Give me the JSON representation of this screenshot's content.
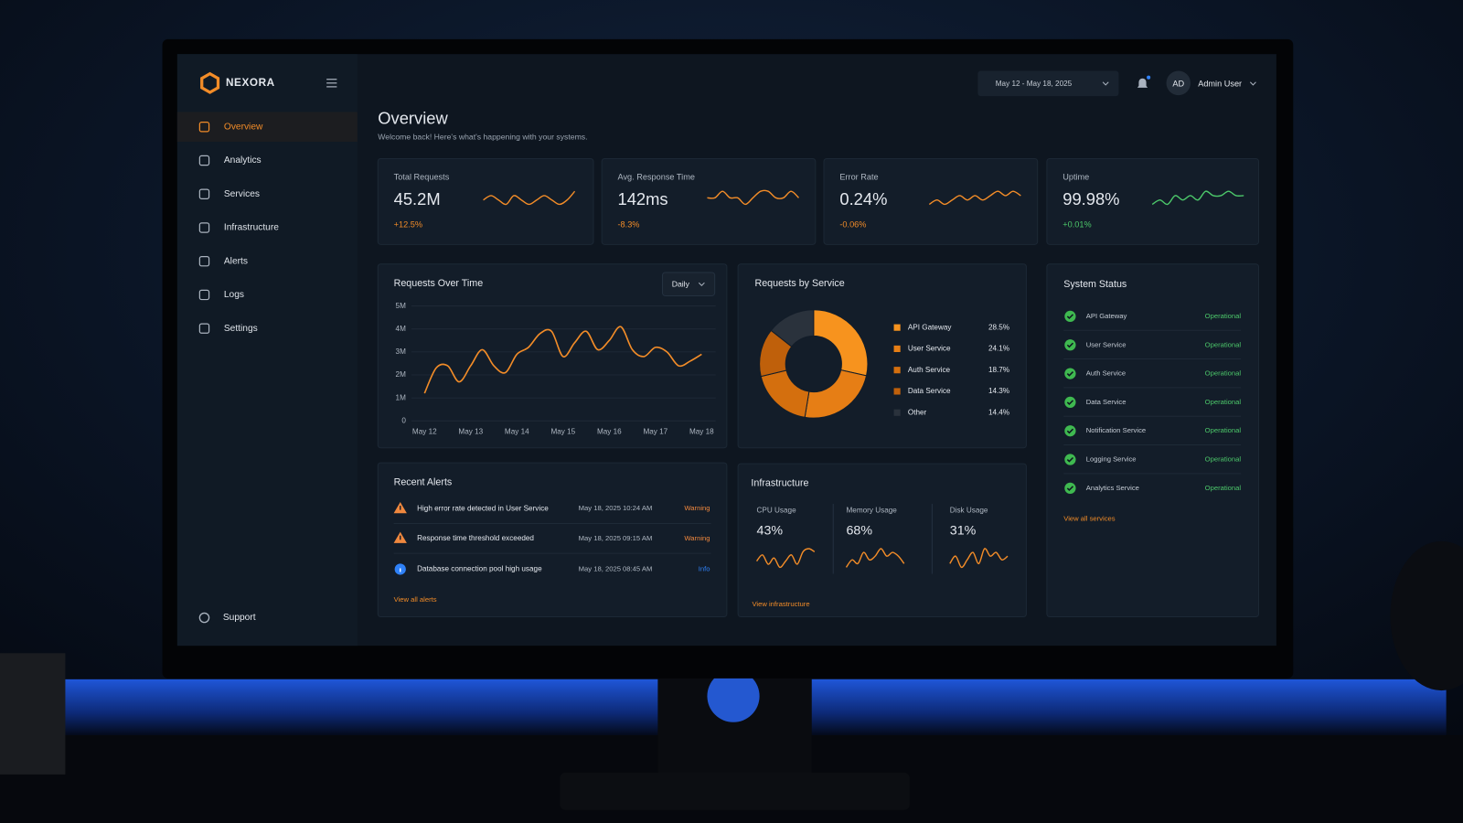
{
  "brand": "NEXORA",
  "nav": [
    "Overview",
    "Analytics",
    "Services",
    "Infrastructure",
    "Alerts",
    "Logs",
    "Settings"
  ],
  "support": "Support",
  "header": {
    "date_range": "May 12 - May 18, 2025",
    "avatar": "AD",
    "user": "Admin User"
  },
  "page": {
    "title": "Overview",
    "subtitle": "Welcome back! Here's what's happening with your systems."
  },
  "kpis": [
    {
      "label": "Total Requests",
      "value": "45.2M",
      "change": "+12.5%",
      "color": "#f28c28",
      "spark": [
        5,
        6,
        5,
        4,
        6,
        5,
        4,
        5,
        6,
        5,
        4,
        5,
        7
      ]
    },
    {
      "label": "Avg. Response Time",
      "value": "142ms",
      "change": "-8.3%",
      "color": "#f28c28",
      "spark": [
        5,
        5,
        6,
        5,
        5,
        4,
        5,
        6,
        6,
        5,
        5,
        6,
        5
      ]
    },
    {
      "label": "Error Rate",
      "value": "0.24%",
      "change": "-0.06%",
      "color": "#f28c28",
      "spark": [
        4,
        5,
        4,
        5,
        6,
        5,
        6,
        5,
        6,
        7,
        6,
        7,
        6
      ]
    },
    {
      "label": "Uptime",
      "value": "99.98%",
      "change": "+0.01%",
      "color": "#4cc76a",
      "spark": [
        4,
        5,
        4,
        6,
        5,
        6,
        5,
        7,
        6,
        6,
        7,
        6,
        6
      ]
    }
  ],
  "requests_chart": {
    "type": "line",
    "title": "Requests Over Time",
    "control": "Daily",
    "color": "#f28c28",
    "x": [
      0,
      0.25,
      0.5,
      0.75,
      1,
      1.25,
      1.5,
      1.75,
      2,
      2.25,
      2.5,
      2.75,
      3,
      3.25,
      3.5,
      3.75,
      4,
      4.25,
      4.5,
      4.75,
      5,
      5.25,
      5.5,
      5.75,
      6
    ],
    "values": [
      1.2,
      2.3,
      2.4,
      1.7,
      2.4,
      3.1,
      2.4,
      2.1,
      2.9,
      3.2,
      3.8,
      3.9,
      2.8,
      3.4,
      3.9,
      3.1,
      3.5,
      4.1,
      3.1,
      2.8,
      3.2,
      3.0,
      2.4,
      2.6,
      2.9
    ],
    "xlim": [
      0,
      6
    ],
    "xticks": [
      {
        "value": 0,
        "label": "May 12"
      },
      {
        "value": 1,
        "label": "May 13"
      },
      {
        "value": 2,
        "label": "May 14"
      },
      {
        "value": 3,
        "label": "May 15"
      },
      {
        "value": 4,
        "label": "May 16"
      },
      {
        "value": 5,
        "label": "May 17"
      },
      {
        "value": 6,
        "label": "May 18"
      }
    ],
    "ylim": [
      0,
      5
    ],
    "yticks": [
      0,
      {
        "value": 1,
        "label": "1M"
      },
      {
        "value": 2,
        "label": "2M"
      },
      {
        "value": 3,
        "label": "3M"
      },
      {
        "value": 4,
        "label": "4M"
      },
      {
        "value": 5,
        "label": "5M"
      }
    ],
    "grid": true
  },
  "service_chart": {
    "type": "pie",
    "title": "Requests by Service",
    "categories": [
      "API Gateway",
      "User Service",
      "Auth Service",
      "Data Service",
      "Other"
    ],
    "values": [
      28.5,
      24.1,
      18.7,
      14.3,
      14.4
    ],
    "value_labels": [
      "28.5%",
      "24.1%",
      "18.7%",
      "14.3%",
      "14.4%"
    ],
    "colors": [
      "#f7931e",
      "#e67e15",
      "#d46f0e",
      "#bf600b",
      "#2a323c"
    ]
  },
  "system_status": {
    "title": "System Status",
    "link": "View all services",
    "services": [
      {
        "name": "API Gateway",
        "status": "Operational"
      },
      {
        "name": "User Service",
        "status": "Operational"
      },
      {
        "name": "Auth Service",
        "status": "Operational"
      },
      {
        "name": "Data Service",
        "status": "Operational"
      },
      {
        "name": "Notification Service",
        "status": "Operational"
      },
      {
        "name": "Logging Service",
        "status": "Operational"
      },
      {
        "name": "Analytics Service",
        "status": "Operational"
      }
    ]
  },
  "alerts": {
    "title": "Recent Alerts",
    "link": "View all alerts",
    "items": [
      {
        "message": "High error rate detected in User Service",
        "time": "May 18, 2025 10:24 AM",
        "level": "Warning",
        "color": "#f0883e"
      },
      {
        "message": "Response time threshold exceeded",
        "time": "May 18, 2025 09:15 AM",
        "level": "Warning",
        "color": "#f0883e"
      },
      {
        "message": "Database connection pool high usage",
        "time": "May 18, 2025 08:45 AM",
        "level": "Info",
        "color": "#2f81f7"
      }
    ]
  },
  "infrastructure": {
    "title": "Infrastructure",
    "link": "View infrastructure",
    "color": "#f28c28",
    "metrics": [
      {
        "label": "CPU Usage",
        "value": "43%",
        "spark": [
          4,
          6,
          3,
          5,
          2,
          4,
          6,
          3,
          7,
          8,
          7
        ]
      },
      {
        "label": "Memory Usage",
        "value": "68%",
        "spark": [
          3,
          5,
          4,
          7,
          5,
          6,
          8,
          6,
          7,
          6,
          4
        ]
      },
      {
        "label": "Disk Usage",
        "value": "31%",
        "spark": [
          3,
          5,
          2,
          4,
          6,
          3,
          7,
          5,
          6,
          4,
          5
        ]
      }
    ]
  }
}
